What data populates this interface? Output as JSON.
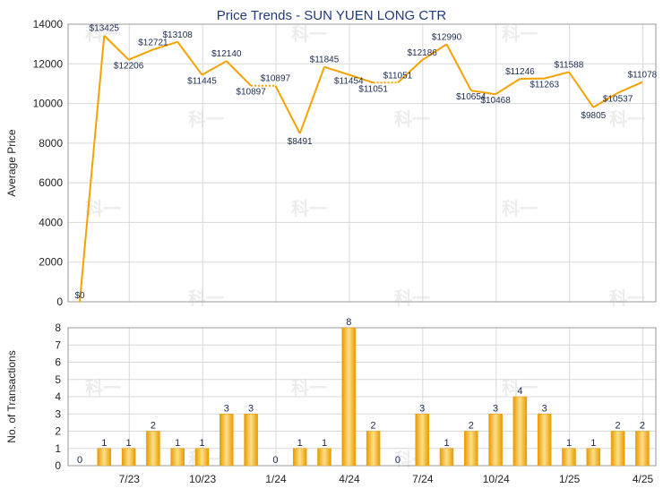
{
  "colors": {
    "line": "#f5a200",
    "bar_dark": "#e89a00",
    "bar_light": "#ffe08a",
    "grid": "#d8d8d8",
    "title": "#1f3b7a",
    "axis_text": "#222222",
    "label_text": "#1a2a50",
    "watermark": "#ececec"
  },
  "watermark_text": "科一",
  "chart_data": [
    {
      "type": "line",
      "title": "Price Trends - SUN YUEN LONG CTR",
      "ylabel": "Average Price",
      "ylim": [
        0,
        14000
      ],
      "yticks": [
        "0",
        "2000",
        "4000",
        "6000",
        "8000",
        "10000",
        "12000",
        "14000"
      ],
      "grid": true,
      "series": [
        {
          "values": [
            0,
            13425,
            12206,
            12721,
            13108,
            11445,
            12140,
            10897,
            10897,
            8491,
            11845,
            11454,
            11051,
            11051,
            12186,
            12990,
            10654,
            10468,
            11246,
            11263,
            11588,
            9805,
            10537,
            11078
          ],
          "labels": [
            "$0",
            "$13425",
            "$12206",
            "$12721",
            "$13108",
            "$11445",
            "$12140",
            "$10897",
            "$10897",
            "$8491",
            "$11845",
            "$11454",
            "$11051",
            "$11051",
            "$12186",
            "$12990",
            "$10654",
            "$10468",
            "$11246",
            "$11263",
            "$11588",
            "$9805",
            "$10537",
            "$11078"
          ]
        }
      ],
      "dotted_segments": [
        [
          7,
          8
        ],
        [
          12,
          13
        ]
      ]
    },
    {
      "type": "bar",
      "ylabel": "No. of Transactions",
      "ylim": [
        0,
        8
      ],
      "yticks": [
        "0",
        "1",
        "2",
        "3",
        "4",
        "5",
        "6",
        "7",
        "8"
      ],
      "xtick_labels": [
        "7/23",
        "10/23",
        "1/24",
        "4/24",
        "7/24",
        "10/24",
        "1/25",
        "4/25"
      ],
      "grid": true,
      "values": [
        0,
        1,
        1,
        2,
        1,
        1,
        3,
        3,
        0,
        1,
        1,
        8,
        2,
        0,
        3,
        1,
        2,
        3,
        4,
        3,
        1,
        1,
        2,
        2
      ],
      "value_labels": [
        "0",
        "1",
        "1",
        "2",
        "1",
        "1",
        "3",
        "3",
        "0",
        "1",
        "1",
        "8",
        "2",
        "0",
        "3",
        "1",
        "2",
        "3",
        "4",
        "3",
        "1",
        "1",
        "2",
        "2"
      ]
    }
  ]
}
